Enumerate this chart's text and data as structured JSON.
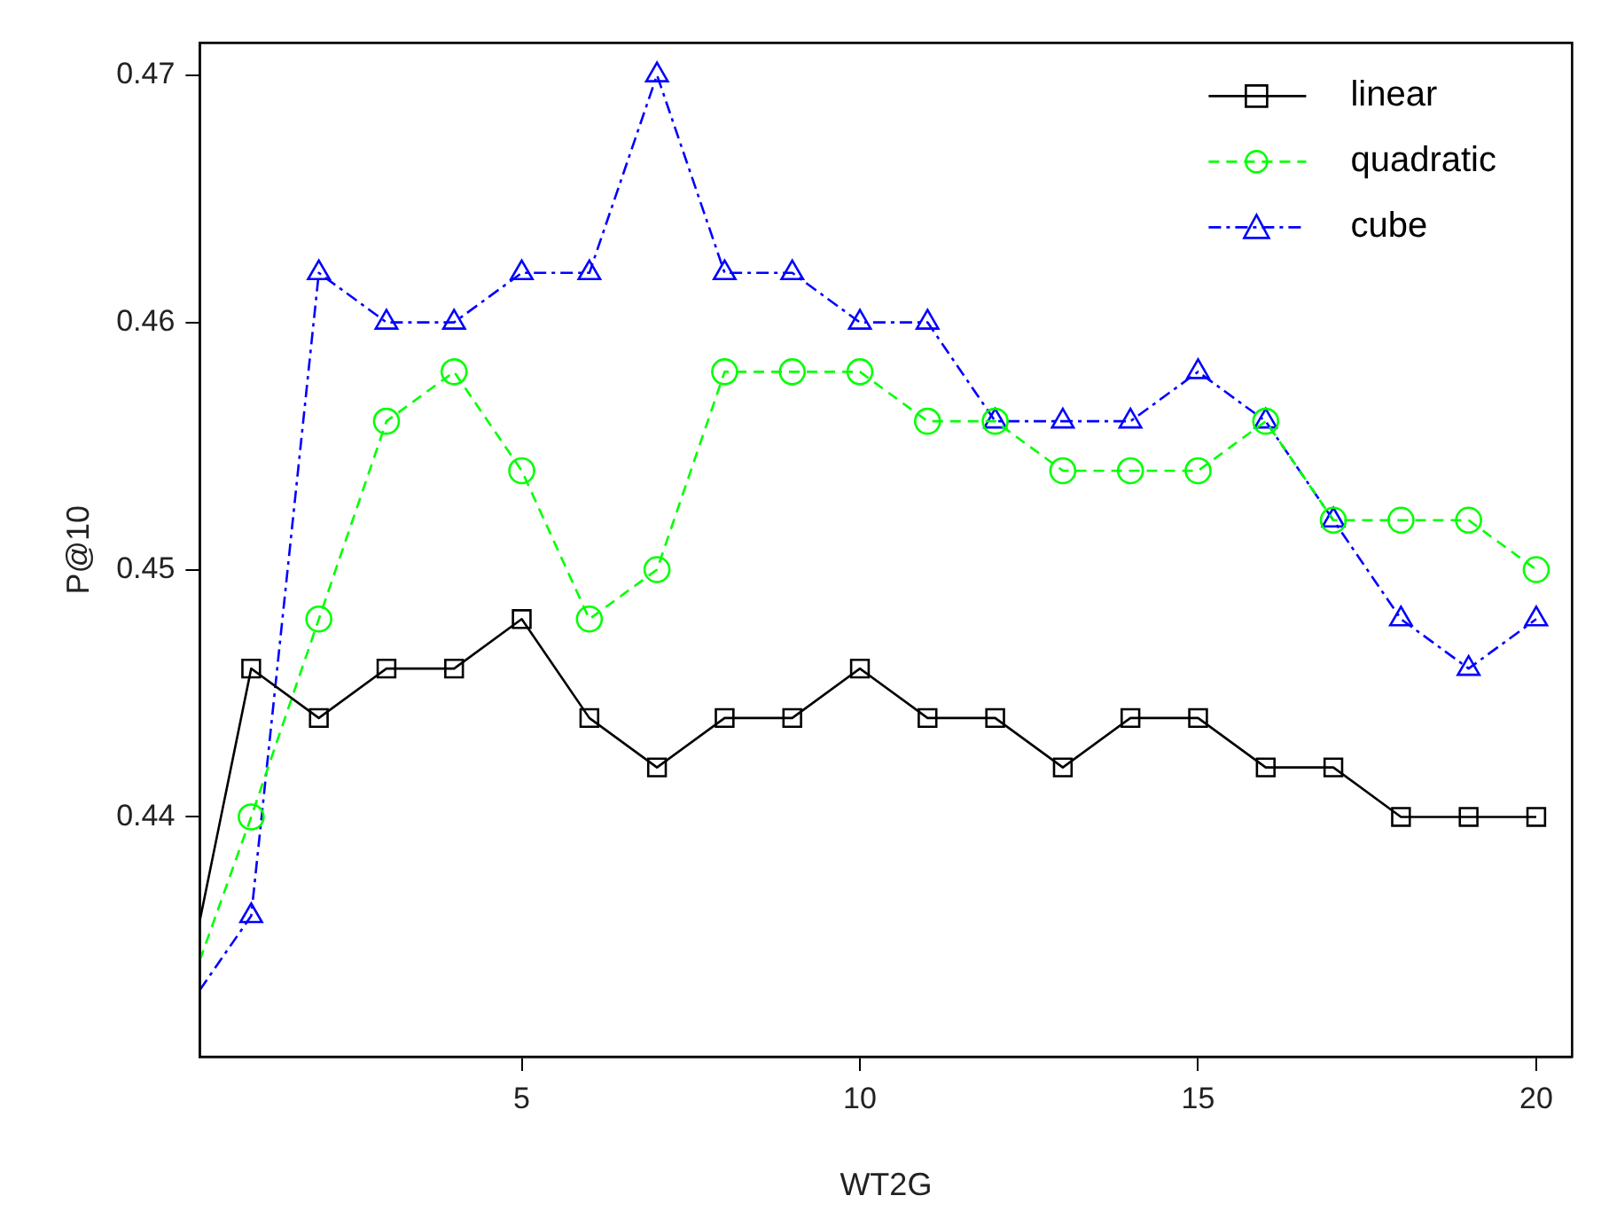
{
  "chart_data": {
    "type": "line",
    "xlabel": "WT2G",
    "ylabel": "P@10",
    "xlim": [
      0.24,
      20.53
    ],
    "xticks": [
      5,
      10,
      15,
      20
    ],
    "ylim": [
      0.4303,
      0.4713
    ],
    "yticks": [
      0.44,
      0.45,
      0.46,
      0.47
    ],
    "x": [
      0.24,
      1,
      2,
      3,
      4,
      5,
      6,
      7,
      8,
      9,
      10,
      11,
      12,
      13,
      14,
      15,
      16,
      17,
      18,
      19,
      20
    ],
    "grid": false,
    "legend": "top right",
    "series": [
      {
        "name": "linear",
        "color": "#000000",
        "marker": "square",
        "line_style": "solid",
        "values": [
          0.4358,
          0.446,
          0.444,
          0.446,
          0.446,
          0.448,
          0.444,
          0.442,
          0.444,
          0.444,
          0.446,
          0.444,
          0.444,
          0.442,
          0.444,
          0.444,
          0.442,
          0.442,
          0.44,
          0.44,
          0.44
        ]
      },
      {
        "name": "quadratic",
        "color": "#00ff00",
        "marker": "circle",
        "line_style": "dashed",
        "values": [
          0.4342,
          0.44,
          0.448,
          0.456,
          0.458,
          0.454,
          0.448,
          0.45,
          0.458,
          0.458,
          0.458,
          0.456,
          0.456,
          0.454,
          0.454,
          0.454,
          0.456,
          0.452,
          0.452,
          0.452,
          0.45
        ]
      },
      {
        "name": "cube",
        "color": "#0000ff",
        "marker": "triangle",
        "line_style": "dotted",
        "values": [
          0.433,
          0.436,
          0.462,
          0.46,
          0.46,
          0.462,
          0.462,
          0.47,
          0.462,
          0.462,
          0.46,
          0.46,
          0.456,
          0.456,
          0.456,
          0.458,
          0.456,
          0.452,
          0.448,
          0.446,
          0.448
        ]
      }
    ]
  }
}
